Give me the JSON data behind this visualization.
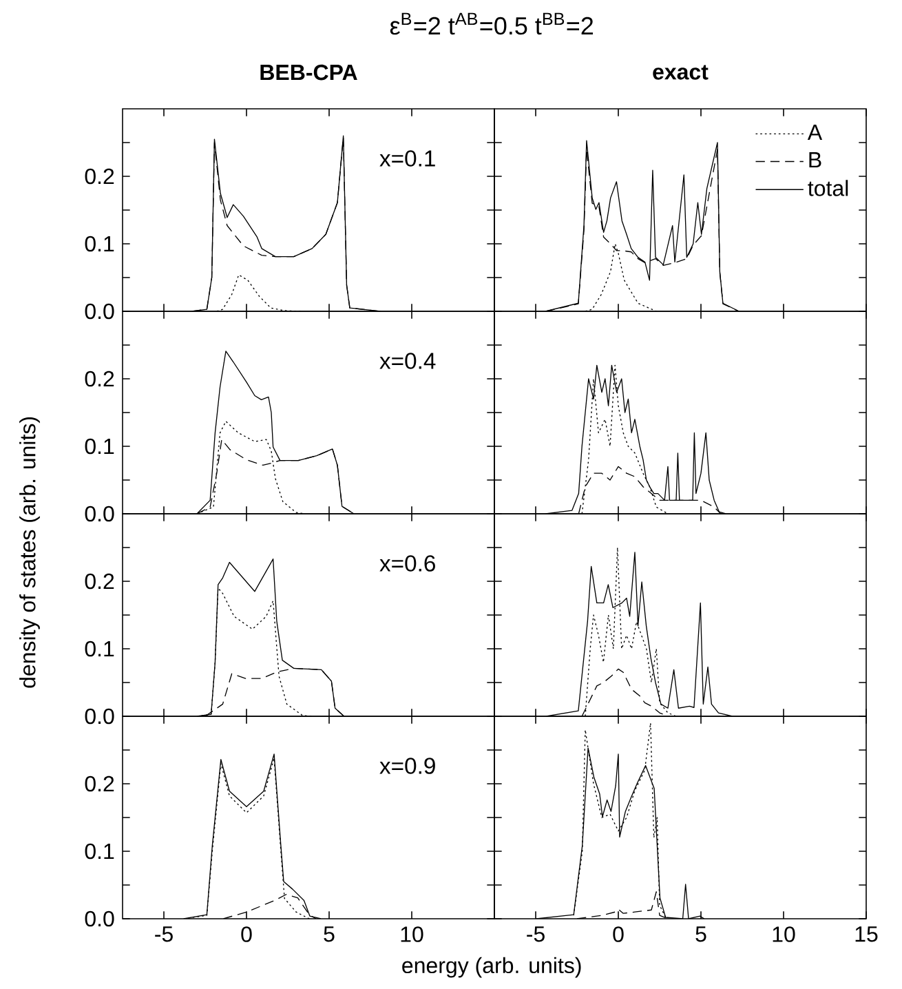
{
  "chart_data": [
    {
      "type": "line",
      "title": "ε$^{B}$=2  t$^{AB}$=0.5  t$^{BB}$=2",
      "subtitle": "BEB-CPA",
      "annotations": [
        "x=0.1"
      ],
      "xlim": [
        -7.5,
        15
      ],
      "xticks": [
        -5,
        0,
        5,
        10
      ],
      "ylim": [
        0,
        0.3
      ],
      "yticks": [
        {
          "value": 0,
          "label": "0.0"
        },
        {
          "value": 0.05,
          "label": null
        },
        {
          "value": 0.1,
          "label": "0.1"
        },
        {
          "value": 0.15,
          "label": null
        },
        {
          "value": 0.2,
          "label": "0.2"
        },
        {
          "value": 0.25,
          "label": null
        }
      ],
      "tick_labels": "y",
      "series": [
        {
          "color": "#000000",
          "line_style": "dotted",
          "x": [
            -1.8,
            -1.44,
            -0.89,
            -0.47,
            0.08,
            0.78,
            1.47,
            2.3,
            3.3
          ],
          "values": [
            0,
            0.003,
            0.025,
            0.054,
            0.046,
            0.022,
            0.005,
            0.001,
            0
          ]
        },
        {
          "color": "#000000",
          "line_style": "dashed",
          "x": [
            -3.3,
            -2.4,
            -2.1,
            -1.94,
            -1.58,
            -1.17,
            -0.19,
            0.92,
            1.75,
            2.86,
            3.97,
            4.8,
            5.5,
            5.86,
            6.06,
            6.25,
            8.1
          ],
          "values": [
            0,
            0.003,
            0.05,
            0.25,
            0.165,
            0.127,
            0.097,
            0.083,
            0.081,
            0.081,
            0.093,
            0.114,
            0.161,
            0.258,
            0.039,
            0.005,
            0
          ]
        },
        {
          "color": "#000000",
          "line_style": "solid",
          "x": [
            -3.3,
            -2.4,
            -2.1,
            -1.94,
            -1.58,
            -1.17,
            -0.8,
            -0.19,
            0.64,
            0.92,
            1.75,
            2.86,
            3.97,
            4.8,
            5.5,
            5.86,
            6.06,
            6.25,
            8.1
          ],
          "values": [
            0,
            0.003,
            0.05,
            0.255,
            0.175,
            0.139,
            0.158,
            0.141,
            0.11,
            0.093,
            0.081,
            0.081,
            0.093,
            0.114,
            0.161,
            0.26,
            0.039,
            0.005,
            0
          ]
        }
      ]
    },
    {
      "type": "line",
      "subtitle": "exact",
      "legend": "top right",
      "xlim": [
        -7.5,
        15
      ],
      "xticks": [
        -5,
        0,
        5,
        10,
        15
      ],
      "ylim": [
        0,
        0.3
      ],
      "yticks": [
        0,
        0.05,
        0.1,
        0.15,
        0.2,
        0.25
      ],
      "tick_labels": false,
      "series": [
        {
          "name": "A",
          "color": "#000000",
          "line_style": "dotted",
          "x": [
            -2.0,
            -1.58,
            -1.03,
            -0.47,
            -0.19,
            0,
            0.36,
            1.19,
            2.3
          ],
          "values": [
            0,
            0.003,
            0.025,
            0.059,
            0.1,
            0.086,
            0.046,
            0.012,
            0
          ]
        },
        {
          "name": "B",
          "color": "#000000",
          "line_style": "dashed",
          "x": [
            -4.4,
            -2.42,
            -2.08,
            -1.92,
            -1.58,
            -1.17,
            -0.89,
            -0.47,
            -0.11,
            0.22,
            0.78,
            1.19,
            1.61,
            2.25,
            2.72,
            3.42,
            4.14,
            4.53,
            5.03,
            6.0,
            6.14,
            6.33,
            7.3
          ],
          "values": [
            0,
            0.011,
            0.12,
            0.24,
            0.16,
            0.155,
            0.11,
            0.1,
            0.09,
            0.09,
            0.088,
            0.078,
            0.072,
            0.078,
            0.068,
            0.072,
            0.078,
            0.098,
            0.112,
            0.24,
            0.058,
            0.011,
            0
          ]
        },
        {
          "name": "total",
          "color": "#000000",
          "line_style": "solid",
          "x": [
            -4.4,
            -2.42,
            -2.08,
            -1.92,
            -1.58,
            -1.36,
            -1.17,
            -0.89,
            -0.69,
            -0.47,
            -0.11,
            0.22,
            0.5,
            0.78,
            1.19,
            1.61,
            1.89,
            2.08,
            2.25,
            2.72,
            3.28,
            3.42,
            3.97,
            4.14,
            4.53,
            4.81,
            5.03,
            5.36,
            6.0,
            6.14,
            6.33,
            7.3
          ],
          "values": [
            0,
            0.012,
            0.127,
            0.253,
            0.168,
            0.151,
            0.161,
            0.117,
            0.134,
            0.168,
            0.192,
            0.134,
            0.114,
            0.093,
            0.08,
            0.073,
            0.046,
            0.209,
            0.08,
            0.069,
            0.127,
            0.073,
            0.202,
            0.08,
            0.1,
            0.161,
            0.114,
            0.182,
            0.25,
            0.059,
            0.012,
            0
          ]
        }
      ]
    },
    {
      "type": "line",
      "ylabel": "density of states (arb. units)",
      "annotations": [
        "x=0.4"
      ],
      "xlim": [
        -7.5,
        15
      ],
      "xticks": [
        -5,
        0,
        5,
        10
      ],
      "ylim": [
        0,
        0.3
      ],
      "yticks": [
        {
          "value": 0,
          "label": "0.0"
        },
        {
          "value": 0.05,
          "label": null
        },
        {
          "value": 0.1,
          "label": "0.1"
        },
        {
          "value": 0.15,
          "label": null
        },
        {
          "value": 0.2,
          "label": "0.2"
        },
        {
          "value": 0.25,
          "label": null
        }
      ],
      "tick_labels": "y",
      "series": [
        {
          "color": "#000000",
          "line_style": "dotted",
          "x": [
            -3,
            -2,
            -1.6,
            -1.25,
            -0.5,
            0.5,
            1.2,
            1.5,
            1.75,
            2.2,
            3,
            3.5
          ],
          "values": [
            0,
            0.01,
            0.12,
            0.137,
            0.12,
            0.107,
            0.11,
            0.093,
            0.052,
            0.018,
            0.002,
            0
          ]
        },
        {
          "color": "#000000",
          "line_style": "dashed",
          "x": [
            -3,
            -2.2,
            -1.8,
            -1.5,
            -1,
            0,
            1,
            1.5,
            2.03,
            3.14,
            4.25,
            5.2,
            5.5,
            5.78,
            6.5
          ],
          "values": [
            0,
            0.01,
            0.06,
            0.11,
            0.095,
            0.08,
            0.072,
            0.075,
            0.079,
            0.079,
            0.086,
            0.096,
            0.072,
            0.011,
            0
          ]
        },
        {
          "color": "#000000",
          "line_style": "solid",
          "x": [
            -3,
            -2.2,
            -1.9,
            -1.6,
            -1.25,
            -0.8,
            0,
            0.5,
            0.9,
            1.33,
            1.5,
            1.61,
            2.03,
            3.14,
            4.25,
            5.2,
            5.5,
            5.78,
            6.5
          ],
          "values": [
            0,
            0.02,
            0.12,
            0.188,
            0.241,
            0.225,
            0.195,
            0.175,
            0.169,
            0.173,
            0.15,
            0.099,
            0.079,
            0.079,
            0.086,
            0.096,
            0.072,
            0.011,
            0
          ]
        }
      ]
    },
    {
      "type": "line",
      "xlim": [
        -7.5,
        15
      ],
      "xticks": [
        -5,
        0,
        5,
        10,
        15
      ],
      "ylim": [
        0,
        0.3
      ],
      "yticks": [
        0,
        0.05,
        0.1,
        0.15,
        0.2,
        0.25
      ],
      "tick_labels": false,
      "series": [
        {
          "color": "#000000",
          "line_style": "dotted",
          "x": [
            -2.2,
            -1.8,
            -1.5,
            -1.2,
            -0.8,
            -0.5,
            -0.2,
            0,
            0.3,
            0.6,
            1.0,
            1.5,
            1.9,
            2.3,
            3
          ],
          "values": [
            0,
            0.08,
            0.2,
            0.12,
            0.14,
            0.1,
            0.22,
            0.16,
            0.12,
            0.1,
            0.09,
            0.06,
            0.04,
            0.01,
            0
          ]
        },
        {
          "color": "#000000",
          "line_style": "dashed",
          "x": [
            -2.4,
            -2.0,
            -1.5,
            -1.0,
            -0.5,
            0,
            0.5,
            1.0,
            1.5,
            2,
            2.5,
            3,
            4,
            5,
            5.8,
            6.2
          ],
          "values": [
            0,
            0.04,
            0.06,
            0.06,
            0.05,
            0.07,
            0.06,
            0.055,
            0.04,
            0.03,
            0.02,
            0.02,
            0.02,
            0.02,
            0.01,
            0
          ]
        },
        {
          "color": "#000000",
          "line_style": "solid",
          "x": [
            -4.4,
            -2.8,
            -2.4,
            -2.2,
            -2.0,
            -1.8,
            -1.6,
            -1.5,
            -1.3,
            -1.1,
            -1.0,
            -0.8,
            -0.6,
            -0.4,
            -0.25,
            -0.1,
            0.2,
            0.4,
            0.6,
            0.8,
            1.0,
            1.3,
            1.5,
            1.7,
            1.9,
            2.05,
            2.15,
            2.3,
            2.4,
            2.8,
            3.0,
            3.1,
            3.5,
            3.6,
            3.7,
            4.1,
            4.2,
            4.5,
            4.6,
            4.7,
            5.0,
            5.3,
            5.5,
            5.8,
            6.1,
            6.5
          ],
          "values": [
            0,
            0.005,
            0.03,
            0.1,
            0.15,
            0.2,
            null,
            0.17,
            0.22,
            null,
            0.18,
            0.2,
            0.16,
            0.22,
            null,
            0.18,
            0.2,
            0.15,
            0.17,
            0.12,
            0.14,
            0.1,
            0.08,
            0.05,
            0.04,
            null,
            0.03,
            null,
            0.03,
            0.02,
            0.07,
            0.02,
            0.02,
            0.09,
            0.02,
            null,
            0.02,
            0.02,
            0.12,
            0.03,
            0.06,
            0.12,
            0.05,
            0.02,
            0.003,
            0
          ]
        }
      ]
    },
    {
      "type": "line",
      "annotations": [
        "x=0.6"
      ],
      "xlim": [
        -7.5,
        15
      ],
      "xticks": [
        -5,
        0,
        5,
        10
      ],
      "ylim": [
        0,
        0.3
      ],
      "yticks": [
        {
          "value": 0,
          "label": "0.0"
        },
        {
          "value": 0.05,
          "label": null
        },
        {
          "value": 0.1,
          "label": "0.1"
        },
        {
          "value": 0.15,
          "label": null
        },
        {
          "value": 0.2,
          "label": "0.2"
        },
        {
          "value": 0.25,
          "label": null
        }
      ],
      "tick_labels": "y",
      "series": [
        {
          "color": "#000000",
          "line_style": "dotted",
          "x": [
            -3,
            -2.14,
            -1.9,
            -1.72,
            -1.44,
            -0.75,
            0.36,
            1.19,
            1.61,
            1.75,
            1.97,
            2.44,
            3.4,
            4
          ],
          "values": [
            0,
            0.003,
            0.08,
            0.19,
            0.182,
            0.148,
            0.129,
            0.148,
            0.171,
            0.127,
            0.059,
            0.018,
            0.001,
            0
          ]
        },
        {
          "color": "#000000",
          "line_style": "dashed",
          "x": [
            -2.5,
            -1.44,
            -0.89,
            -0.06,
            0.92,
            1.89,
            2.86,
            4.53,
            5.14,
            5.36,
            5.9
          ],
          "values": [
            0,
            0.018,
            0.063,
            0.056,
            0.056,
            0.066,
            0.071,
            0.069,
            0.052,
            0.012,
            0
          ]
        },
        {
          "color": "#000000",
          "line_style": "solid",
          "x": [
            -3,
            -2.14,
            -1.9,
            -1.72,
            -1.44,
            -1.03,
            0.5,
            1.61,
            1.83,
            2.17,
            2.86,
            4.53,
            5.14,
            5.36,
            5.9
          ],
          "values": [
            0,
            0.003,
            0.08,
            0.195,
            0.205,
            0.228,
            0.185,
            0.233,
            0.141,
            0.083,
            0.071,
            0.069,
            0.052,
            0.012,
            0
          ]
        }
      ]
    },
    {
      "type": "line",
      "xlim": [
        -7.5,
        15
      ],
      "xticks": [
        -5,
        0,
        5,
        10,
        15
      ],
      "ylim": [
        0,
        0.3
      ],
      "yticks": [
        0,
        0.05,
        0.1,
        0.15,
        0.2,
        0.25
      ],
      "tick_labels": false,
      "series": [
        {
          "color": "#000000",
          "line_style": "dotted",
          "x": [
            -2.0,
            -1.7,
            -1.5,
            -1.2,
            -0.9,
            -0.6,
            -0.3,
            -0.05,
            0.2,
            0.5,
            0.8,
            1.1,
            1.4,
            1.7,
            2.0,
            2.3,
            2.5,
            3,
            3.5
          ],
          "values": [
            0,
            0.1,
            0.15,
            0.12,
            0.08,
            0.15,
            0.1,
            0.25,
            0.1,
            0.12,
            0.1,
            0.14,
            0.12,
            0.1,
            0.05,
            0.1,
            0.02,
            0.005,
            0
          ]
        },
        {
          "color": "#000000",
          "line_style": "dashed",
          "x": [
            -2.2,
            -1.8,
            -1.3,
            -0.9,
            -0.4,
            0,
            0.3,
            0.8,
            1.3,
            1.6,
            2,
            2.5,
            3
          ],
          "values": [
            0,
            0.02,
            0.045,
            0.05,
            0.06,
            0.07,
            0.065,
            0.04,
            0.03,
            0.02,
            0.015,
            0.005,
            0
          ]
        },
        {
          "color": "#000000",
          "line_style": "solid",
          "x": [
            -4.36,
            -2.42,
            -1.86,
            -1.64,
            -1.44,
            -1.3,
            -1.08,
            -0.89,
            -0.61,
            -0.33,
            0,
            0.22,
            0.5,
            0.69,
            1.0,
            1.19,
            1.42,
            1.69,
            1.97,
            2.14,
            2.25,
            2.36,
            2.58,
            3.0,
            3.36,
            3.64,
            4.14,
            4.31,
            4.58,
            4.97,
            5.14,
            5.42,
            5.64,
            6.06,
            6.9
          ],
          "values": [
            0,
            0.008,
            0.141,
            0.222,
            null,
            0.168,
            null,
            0.168,
            0.195,
            0.161,
            null,
            0.168,
            0.175,
            0.148,
            0.243,
            0.134,
            0.199,
            0.134,
            0.086,
            null,
            0.05,
            null,
            0.018,
            0.012,
            0.069,
            0.012,
            null,
            0.015,
            0.013,
            0.168,
            0.018,
            0.073,
            0.018,
            0.005,
            0
          ]
        }
      ]
    },
    {
      "type": "line",
      "xlabel": "energy (arb. units)",
      "annotations": [
        "x=0.9"
      ],
      "xlim": [
        -7.5,
        15
      ],
      "xticks": [
        -5,
        0,
        5,
        10
      ],
      "ylim": [
        0,
        0.3
      ],
      "yticks": [
        {
          "value": 0,
          "label": "0.0"
        },
        {
          "value": 0.05,
          "label": null
        },
        {
          "value": 0.1,
          "label": "0.1"
        },
        {
          "value": 0.15,
          "label": null
        },
        {
          "value": 0.2,
          "label": "0.2"
        },
        {
          "value": 0.25,
          "label": null
        }
      ],
      "series": [
        {
          "color": "#000000",
          "line_style": "dotted",
          "x": [
            -3.8,
            -2.4,
            -2.07,
            -1.95,
            -1.55,
            -1.03,
            0,
            1.04,
            1.67,
            1.9,
            2.08,
            2.3,
            3,
            3.8
          ],
          "values": [
            0,
            0.005,
            0.1,
            null,
            0.23,
            0.182,
            0.157,
            0.182,
            0.238,
            null,
            0.1,
            0.03,
            0.01,
            0
          ]
        },
        {
          "color": "#000000",
          "line_style": "dashed",
          "x": [
            -1.4,
            0,
            1.7,
            2.4,
            3.1,
            3.8,
            4.2
          ],
          "values": [
            0,
            0.01,
            0.027,
            0.036,
            0.031,
            0.006,
            0
          ]
        },
        {
          "color": "#000000",
          "line_style": "solid",
          "x": [
            -3.8,
            -2.4,
            -2.07,
            -1.95,
            -1.55,
            -1.03,
            0,
            1.04,
            1.67,
            1.9,
            2.08,
            2.25,
            2.78,
            3.48,
            3.83,
            4.5
          ],
          "values": [
            0,
            0.006,
            0.108,
            null,
            0.236,
            0.189,
            0.166,
            0.189,
            0.244,
            null,
            0.108,
            0.055,
            0.044,
            0.027,
            0.004,
            0
          ]
        }
      ]
    },
    {
      "type": "line",
      "xlim": [
        -7.5,
        15
      ],
      "xticks": [
        -5,
        0,
        5,
        10,
        15
      ],
      "ylim": [
        0,
        0.3
      ],
      "yticks": [
        0,
        0.05,
        0.1,
        0.15,
        0.2,
        0.25
      ],
      "tick_labels": "x",
      "series": [
        {
          "color": "#000000",
          "line_style": "dotted",
          "x": [
            -2.7,
            -2.18,
            -2.0,
            -1.5,
            -1.0,
            -0.5,
            0,
            0.5,
            1.0,
            1.6,
            1.95,
            2.15,
            2.35,
            2.5,
            2.9
          ],
          "values": [
            0.005,
            0.1,
            0.28,
            0.2,
            0.15,
            0.155,
            0.13,
            0.15,
            0.19,
            0.22,
            0.29,
            0.12,
            0.15,
            0.02,
            0
          ]
        },
        {
          "color": "#000000",
          "line_style": "dashed",
          "x": [
            -2.5,
            -1,
            -0.2,
            0,
            0.3,
            1,
            2,
            2.3,
            2.5,
            3
          ],
          "values": [
            0,
            0.005,
            0.01,
            0.014,
            0.008,
            0.01,
            0.013,
            0.04,
            0.005,
            0
          ]
        },
        {
          "color": "#000000",
          "line_style": "solid",
          "x": [
            -4.96,
            -2.7,
            -2.18,
            -2.0,
            -1.83,
            -1.48,
            -1.13,
            -0.96,
            -0.68,
            -0.44,
            -0.16,
            0,
            0.08,
            0.43,
            0.78,
            1.13,
            1.65,
            1.93,
            2.17,
            2.35,
            2.52,
            2.86,
            3.9,
            4.07,
            4.25,
            4.94,
            5.2
          ],
          "values": [
            0,
            0.006,
            0.108,
            null,
            0.253,
            0.21,
            0.185,
            0.151,
            0.176,
            0.159,
            0.197,
            0.244,
            0.121,
            0.159,
            0.18,
            0.2,
            0.227,
            null,
            0.193,
            null,
            0.031,
            0.002,
            0,
            0.051,
            0,
            0.004,
            0
          ]
        }
      ]
    }
  ]
}
